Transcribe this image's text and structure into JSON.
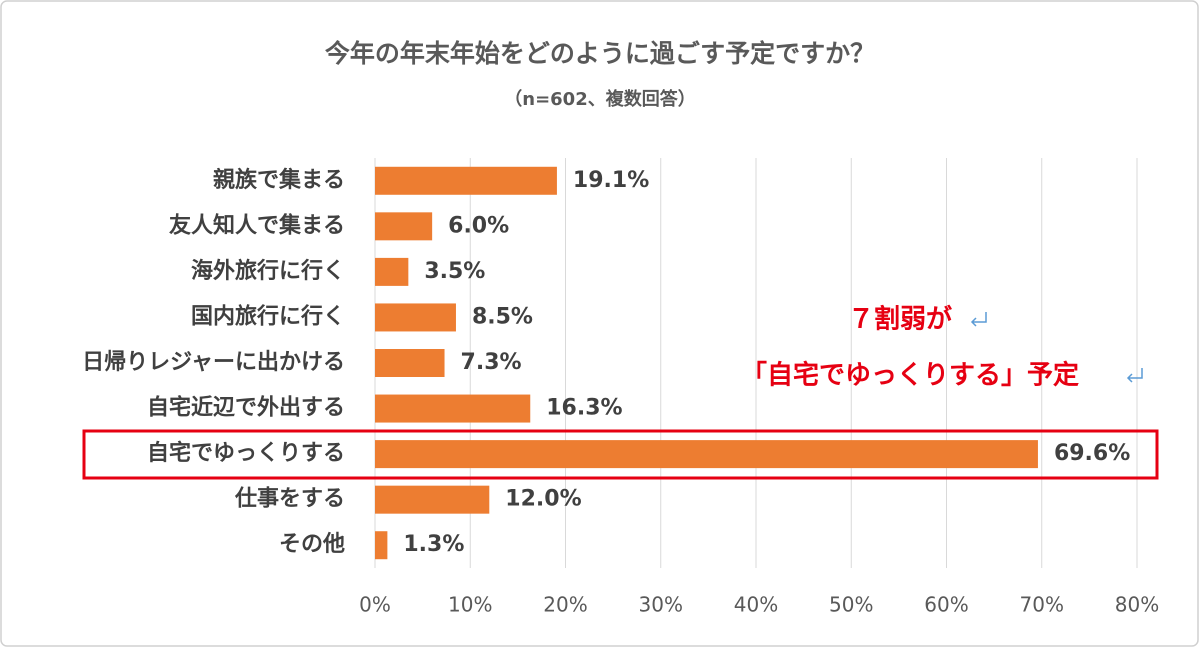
{
  "chart_data": {
    "type": "bar",
    "orientation": "horizontal",
    "title": "今年の年末年始をどのように過ごす予定ですか？",
    "subtitle": "（n=602、複数回答）",
    "categories": [
      "親族で集まる",
      "友人知人で集まる",
      "海外旅行に行く",
      "国内旅行に行く",
      "日帰りレジャーに出かける",
      "自宅近辺で外出する",
      "自宅でゆっくりする",
      "仕事をする",
      "その他"
    ],
    "values": [
      19.1,
      6.0,
      3.5,
      8.5,
      7.3,
      16.3,
      69.6,
      12.0,
      1.3
    ],
    "value_labels": [
      "19.1%",
      "6.0%",
      "3.5%",
      "8.5%",
      "7.3%",
      "16.3%",
      "69.6%",
      "12.0%",
      "1.3%"
    ],
    "color": "#ed7d31",
    "xlim": [
      0,
      80
    ],
    "xticks": [
      {
        "value": 0,
        "label": "0%"
      },
      {
        "value": 10,
        "label": "10%"
      },
      {
        "value": 20,
        "label": "20%"
      },
      {
        "value": 30,
        "label": "30%"
      },
      {
        "value": 40,
        "label": "40%"
      },
      {
        "value": 50,
        "label": "50%"
      },
      {
        "value": 60,
        "label": "60%"
      },
      {
        "value": 70,
        "label": "70%"
      },
      {
        "value": 80,
        "label": "80%"
      }
    ],
    "grid": true,
    "annotations": [
      "７割弱が",
      "「自宅でゆっくりする」予定"
    ]
  }
}
